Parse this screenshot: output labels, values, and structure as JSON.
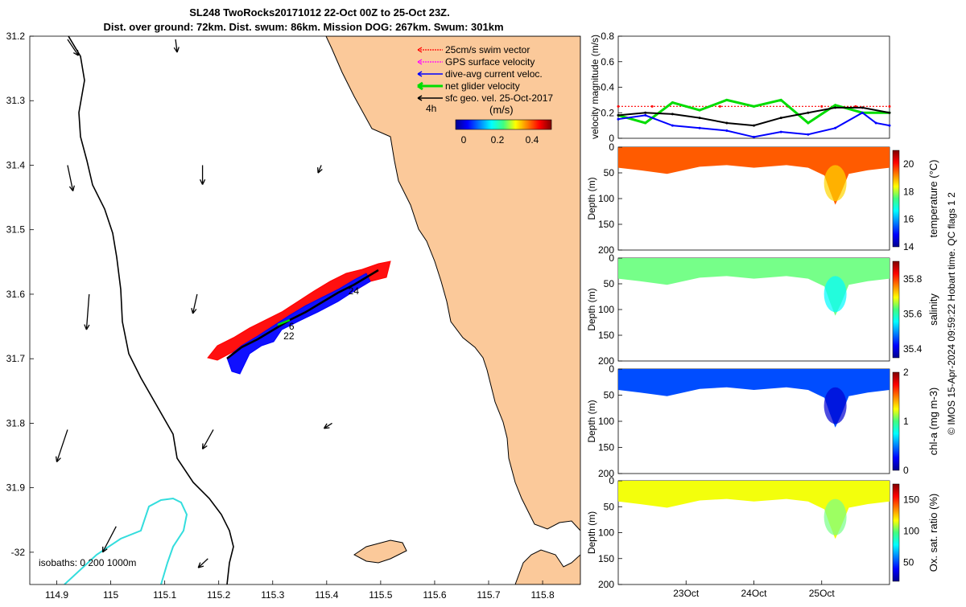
{
  "header": {
    "line1": "SL248 TwoRocks20171012 22-Oct 00Z to 25-Oct 23Z.",
    "line2": "Dist. over ground: 72km. Dist. swum: 86km. Mission DOG: 267km. Swum: 301km"
  },
  "credit": "© IMOS 15-Apr-2024 09:59:22 Hobart time. QC flags 1  2",
  "colors": {
    "land": "#fbc99a",
    "swim": "#ff0000",
    "gps": "#ff00ff",
    "dac": "#0000ff",
    "net": "#00dd00",
    "sfc": "#000000",
    "isobath": "#33dddd"
  },
  "chart_data": [
    {
      "type": "map",
      "name": "track_map",
      "xlabel": "",
      "ylabel": "",
      "xlim": [
        114.85,
        115.87
      ],
      "ylim": [
        31.2,
        32.05
      ],
      "y_inverted": true,
      "x_ticks": [
        "114.9",
        "115",
        "115.1",
        "115.2",
        "115.3",
        "115.4",
        "115.5",
        "115.6",
        "115.7",
        "115.8"
      ],
      "y_ticks": [
        "31.2",
        "31.3",
        "31.4",
        "31.5",
        "31.6",
        "31.7",
        "31.8",
        "31.9",
        "-32"
      ],
      "legend": [
        {
          "label": "25cm/s swim vector",
          "color": "#ff0000",
          "style": "dotted"
        },
        {
          "label": "GPS surface velocity",
          "color": "#ff00ff",
          "style": "dotted"
        },
        {
          "label": "dive-avg current veloc.",
          "color": "#0000ff",
          "style": "solid"
        },
        {
          "label": "net glider velocity",
          "color": "#00dd00",
          "style": "solid"
        },
        {
          "label": "sfc geo. vel. 25-Oct-2017",
          "color": "#000000",
          "style": "solid"
        }
      ],
      "legend_position": "top-right",
      "colorbar": {
        "title": "(m/s)",
        "ticks": [
          "0",
          "0.2",
          "0.4"
        ],
        "range": [
          0,
          0.5
        ]
      },
      "extra_label": "4h",
      "isobath_label": "isobaths: 0   200   1000m",
      "track_labels": [
        {
          "text": "24",
          "lon": 115.44,
          "lat": 31.6
        },
        {
          "text": "6",
          "lon": 115.33,
          "lat": 31.655
        },
        {
          "text": "22",
          "lon": 115.32,
          "lat": 31.67
        }
      ],
      "track": {
        "start": [
          115.22,
          31.7
        ],
        "end": [
          115.5,
          31.57
        ]
      },
      "geovel_arrows": [
        {
          "lon": 114.92,
          "lat": 31.205,
          "dlon": 0.02,
          "dlat": 0.025
        },
        {
          "lon": 115.12,
          "lat": 31.205,
          "dlon": 0.003,
          "dlat": 0.02
        },
        {
          "lon": 114.92,
          "lat": 31.4,
          "dlon": 0.01,
          "dlat": 0.04
        },
        {
          "lon": 115.17,
          "lat": 31.4,
          "dlon": 0.0,
          "dlat": 0.03
        },
        {
          "lon": 115.39,
          "lat": 31.4,
          "dlon": -0.006,
          "dlat": 0.012
        },
        {
          "lon": 114.96,
          "lat": 31.6,
          "dlon": -0.005,
          "dlat": 0.055
        },
        {
          "lon": 115.16,
          "lat": 31.6,
          "dlon": -0.008,
          "dlat": 0.03
        },
        {
          "lon": 114.92,
          "lat": 31.81,
          "dlon": -0.02,
          "dlat": 0.05
        },
        {
          "lon": 115.19,
          "lat": 31.81,
          "dlon": -0.02,
          "dlat": 0.03
        },
        {
          "lon": 115.41,
          "lat": 31.8,
          "dlon": -0.015,
          "dlat": 0.008
        },
        {
          "lon": 115.01,
          "lat": 31.96,
          "dlon": -0.025,
          "dlat": 0.04
        },
        {
          "lon": 115.18,
          "lat": 32.01,
          "dlon": -0.018,
          "dlat": 0.014
        }
      ]
    },
    {
      "type": "line",
      "name": "velocity_magnitude",
      "xlabel": "",
      "ylabel": "velocity magnitude (m/s)",
      "ylim": [
        0,
        0.8
      ],
      "y_ticks": [
        "0",
        "0.2",
        "0.4",
        "0.6",
        "0.8"
      ],
      "x_range_days": [
        0,
        4
      ],
      "series": [
        {
          "name": "swim speed",
          "color": "#ff0000",
          "style": "dotted",
          "x": [
            0,
            0.5,
            1,
            1.5,
            2,
            2.5,
            3,
            3.5,
            4
          ],
          "y": [
            0.25,
            0.25,
            0.25,
            0.25,
            0.25,
            0.25,
            0.25,
            0.25,
            0.25
          ]
        },
        {
          "name": "net glider velocity",
          "color": "#00dd00",
          "style": "solid",
          "x": [
            0,
            0.4,
            0.8,
            1.2,
            1.6,
            2.0,
            2.4,
            2.8,
            3.2,
            3.6,
            4.0
          ],
          "y": [
            0.18,
            0.12,
            0.28,
            0.22,
            0.3,
            0.25,
            0.3,
            0.12,
            0.26,
            0.2,
            0.2
          ]
        },
        {
          "name": "sfc geo vel",
          "color": "#000000",
          "style": "solid",
          "x": [
            0,
            0.4,
            0.8,
            1.2,
            1.6,
            2.0,
            2.4,
            2.8,
            3.2,
            3.6,
            4.0
          ],
          "y": [
            0.18,
            0.2,
            0.19,
            0.16,
            0.12,
            0.1,
            0.16,
            0.2,
            0.24,
            0.24,
            0.2
          ]
        },
        {
          "name": "dive-avg current",
          "color": "#0000ff",
          "style": "solid",
          "x": [
            0,
            0.4,
            0.8,
            1.2,
            1.6,
            2.0,
            2.4,
            2.8,
            3.2,
            3.6,
            3.8,
            4.0
          ],
          "y": [
            0.15,
            0.18,
            0.1,
            0.08,
            0.06,
            0.01,
            0.05,
            0.03,
            0.08,
            0.2,
            0.12,
            0.1
          ]
        }
      ]
    },
    {
      "type": "heatmap",
      "name": "temperature",
      "ylabel": "Depth (m)",
      "colorbar_label": "temperature (°C)",
      "colorbar_ticks": [
        "14",
        "16",
        "18",
        "20"
      ],
      "clim": [
        14,
        21
      ],
      "y_ticks": [
        "0",
        "50",
        "100",
        "150",
        "200"
      ],
      "ylim": [
        0,
        200
      ],
      "fill_value": 19.5
    },
    {
      "type": "heatmap",
      "name": "salinity",
      "ylabel": "Depth (m)",
      "colorbar_label": "salinity",
      "colorbar_ticks": [
        "35.4",
        "35.6",
        "35.8"
      ],
      "clim": [
        35.35,
        35.9
      ],
      "y_ticks": [
        "0",
        "50",
        "100",
        "150",
        "200"
      ],
      "ylim": [
        0,
        200
      ],
      "fill_value": 35.62
    },
    {
      "type": "heatmap",
      "name": "chl-a",
      "ylabel": "Depth (m)",
      "colorbar_label": "chl-a (mg m-3)",
      "colorbar_ticks": [
        "0",
        "1",
        "2"
      ],
      "clim": [
        0,
        2
      ],
      "y_ticks": [
        "0",
        "50",
        "100",
        "150",
        "200"
      ],
      "ylim": [
        0,
        200
      ],
      "fill_value": 0.4
    },
    {
      "type": "heatmap",
      "name": "oxygen",
      "ylabel": "Depth (m)",
      "xlabel": "",
      "x_ticks": [
        "23Oct",
        "24Oct",
        "25Oct"
      ],
      "colorbar_label": "Ox. sat. ratio (%)",
      "colorbar_ticks": [
        "50",
        "100",
        "150"
      ],
      "clim": [
        20,
        175
      ],
      "y_ticks": [
        "0",
        "50",
        "100",
        "150",
        "200"
      ],
      "ylim": [
        0,
        200
      ],
      "fill_value": 115
    }
  ]
}
